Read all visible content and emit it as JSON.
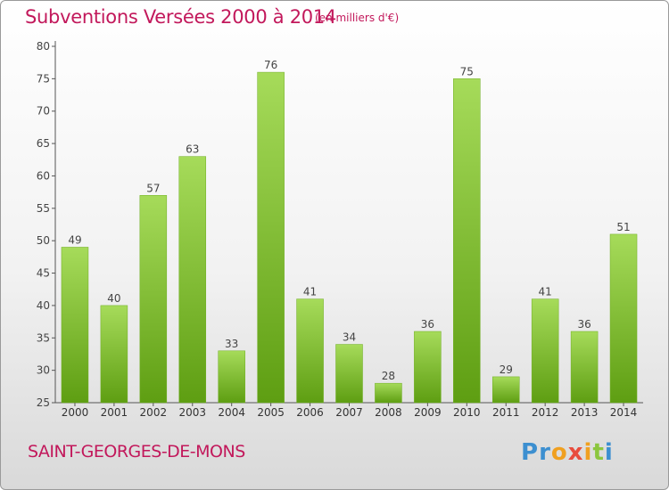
{
  "header": {
    "title": "Subventions Versées 2000 à 2014",
    "subtitle": "(en milliers d'€)"
  },
  "footer": {
    "commune": "SAINT-GEORGES-DE-MONS",
    "logo_text": "Proxiti"
  },
  "colors": {
    "bar_light": "#a6db5a",
    "bar_dark": "#5e9e12",
    "title": "#c2185b"
  },
  "chart_data": {
    "type": "bar",
    "title": "Subventions Versées 2000 à 2014",
    "subtitle": "(en milliers d'€)",
    "categories": [
      "2000",
      "2001",
      "2002",
      "2003",
      "2004",
      "2005",
      "2006",
      "2007",
      "2008",
      "2009",
      "2010",
      "2011",
      "2012",
      "2013",
      "2014"
    ],
    "values": [
      49,
      40,
      57,
      63,
      33,
      76,
      41,
      34,
      28,
      36,
      75,
      29,
      41,
      36,
      51
    ],
    "ylim": [
      25,
      80
    ],
    "yticks": [
      25,
      30,
      35,
      40,
      45,
      50,
      55,
      60,
      65,
      70,
      75,
      80
    ],
    "grid": false,
    "legend": "none"
  }
}
